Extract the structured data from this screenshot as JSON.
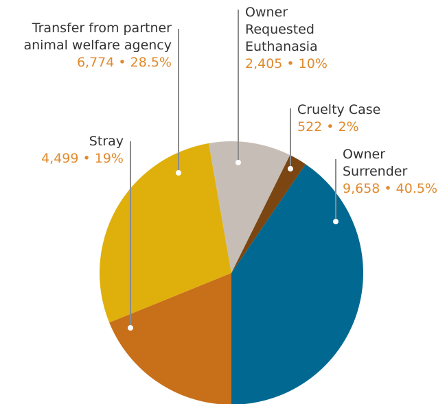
{
  "chart_data": {
    "type": "pie",
    "categories": [
      "Stray",
      "Transfer from partner\nanimal welfare agency",
      "Owner\nRequested\nEuthanasia",
      "Cruelty Case",
      "Owner\nSurrender"
    ],
    "values": [
      4499,
      6774,
      2405,
      522,
      9658
    ],
    "value_labels": [
      "4,499 • 19%",
      "6,774 • 28.5%",
      "2,405 • 10%",
      "522 • 2%",
      "9,658 • 40.5%"
    ],
    "colors": [
      "#c86f1a",
      "#dfb00c",
      "#c6beb6",
      "#7b4611",
      "#006891"
    ]
  }
}
